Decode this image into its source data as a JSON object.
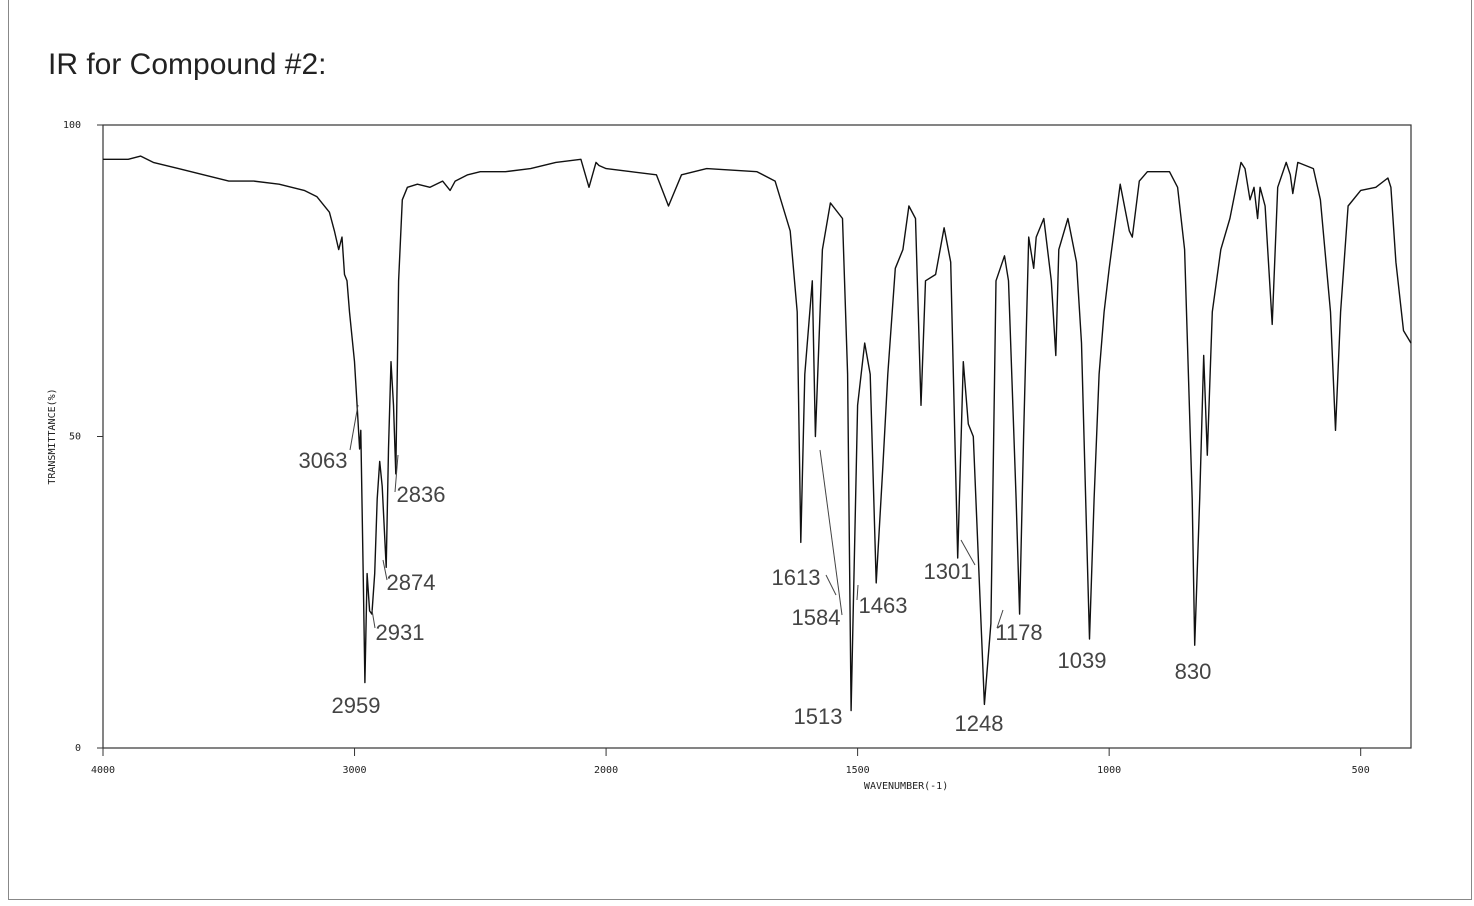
{
  "chart_data": {
    "type": "line",
    "title": "IR for Compound #2:",
    "xlabel": "WAVENUMBER(-1)",
    "ylabel": "TRANSMITTANCE(%)",
    "xlim": [
      4000,
      400
    ],
    "ylim": [
      0,
      100
    ],
    "xticks": [
      4000,
      3000,
      2000,
      1500,
      1000,
      500
    ],
    "yticks": [
      0,
      50,
      100
    ],
    "color": "#111111",
    "annotations": [
      "3063",
      "2836",
      "2874",
      "2931",
      "2959",
      "1613",
      "1584",
      "1463",
      "1513",
      "1301",
      "1248",
      "1178",
      "1039",
      "830"
    ],
    "x": [
      4000,
      3900,
      3850,
      3800,
      3700,
      3600,
      3500,
      3400,
      3300,
      3200,
      3150,
      3100,
      3080,
      3063,
      3050,
      3040,
      3030,
      3020,
      3010,
      3000,
      2990,
      2980,
      2975,
      2965,
      2959,
      2950,
      2940,
      2931,
      2920,
      2910,
      2900,
      2890,
      2874,
      2865,
      2855,
      2845,
      2836,
      2825,
      2810,
      2790,
      2750,
      2700,
      2650,
      2620,
      2600,
      2550,
      2500,
      2400,
      2300,
      2200,
      2100,
      2068,
      2040,
      2028,
      2000,
      1950,
      1900,
      1876,
      1850,
      1800,
      1700,
      1664,
      1634,
      1620,
      1613,
      1605,
      1590,
      1584,
      1570,
      1554,
      1530,
      1520,
      1513,
      1500,
      1486,
      1475,
      1463,
      1450,
      1440,
      1425,
      1410,
      1398,
      1385,
      1374,
      1365,
      1345,
      1328,
      1315,
      1301,
      1290,
      1280,
      1270,
      1248,
      1235,
      1225,
      1208,
      1200,
      1185,
      1178,
      1170,
      1160,
      1150,
      1145,
      1130,
      1115,
      1106,
      1100,
      1082,
      1065,
      1055,
      1045,
      1039,
      1030,
      1020,
      1010,
      1000,
      978,
      960,
      954,
      940,
      924,
      880,
      864,
      850,
      835,
      830,
      820,
      812,
      805,
      795,
      778,
      760,
      738,
      730,
      720,
      712,
      705,
      700,
      690,
      676,
      665,
      648,
      640,
      635,
      625,
      594,
      580,
      560,
      550,
      540,
      525,
      500,
      470,
      446,
      440,
      430,
      415,
      400
    ],
    "values": [
      94.5,
      94.5,
      95,
      94,
      93,
      92,
      91,
      91,
      90.5,
      89.5,
      88.5,
      86,
      83,
      80,
      82,
      76,
      75,
      70,
      66,
      62,
      55,
      48,
      51,
      27,
      10.5,
      28,
      22,
      21.5,
      28,
      40,
      46,
      42,
      29,
      48,
      62,
      55,
      44,
      75,
      88,
      90,
      90.5,
      90,
      91,
      89.5,
      91,
      92,
      92.5,
      92.5,
      93,
      94,
      94.5,
      90,
      94,
      93.5,
      93,
      92.5,
      92,
      87,
      92,
      93,
      92.5,
      91,
      83,
      70,
      33,
      60,
      75,
      50,
      80,
      87.5,
      85,
      60,
      6,
      55,
      65,
      60,
      26.5,
      45,
      60,
      77,
      80,
      87,
      85,
      55,
      75,
      76,
      83.5,
      78,
      30.5,
      62,
      52,
      50,
      7,
      20,
      75,
      79,
      75,
      40,
      21.5,
      50,
      82,
      77,
      82,
      85,
      75,
      63,
      80,
      85,
      78,
      65,
      35,
      17.5,
      40,
      60,
      70,
      77,
      90.5,
      83,
      82,
      91,
      92.5,
      92.5,
      90,
      80,
      40,
      16.5,
      40,
      63,
      47,
      70,
      80,
      85,
      94,
      93,
      88,
      90,
      85,
      90,
      87,
      68,
      90,
      94,
      92,
      89,
      94,
      93,
      88,
      70,
      51,
      70,
      87,
      89.5,
      90,
      91.5,
      90,
      78,
      67,
      65
    ]
  }
}
